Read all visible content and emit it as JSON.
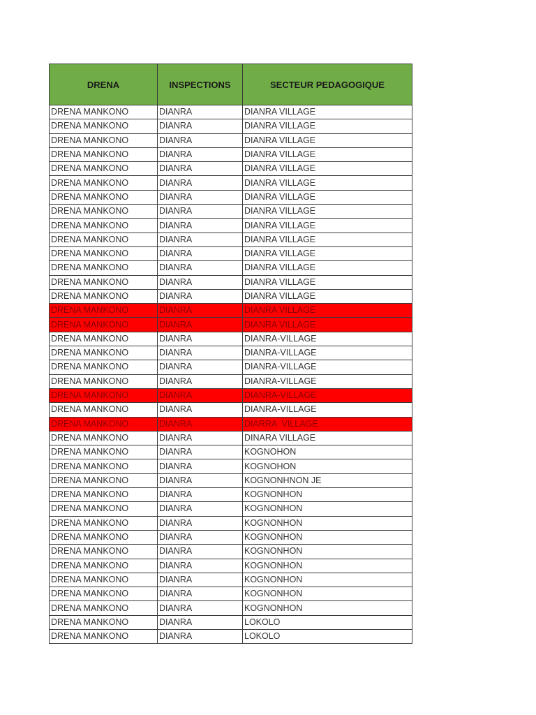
{
  "colors": {
    "header_fill": "#70ad47",
    "highlight_fill": "#ff0000"
  },
  "table": {
    "headers": [
      "DRENA",
      "INSPECTIONS",
      "SECTEUR PEDAGOGIQUE"
    ],
    "rows": [
      {
        "cells": [
          "DRENA MANKONO",
          "DIANRA",
          "DIANRA VILLAGE"
        ],
        "highlighted": false
      },
      {
        "cells": [
          "DRENA MANKONO",
          "DIANRA",
          "DIANRA VILLAGE"
        ],
        "highlighted": false
      },
      {
        "cells": [
          "DRENA MANKONO",
          "DIANRA",
          "DIANRA VILLAGE"
        ],
        "highlighted": false
      },
      {
        "cells": [
          "DRENA MANKONO",
          "DIANRA",
          "DIANRA VILLAGE"
        ],
        "highlighted": false
      },
      {
        "cells": [
          "DRENA MANKONO",
          "DIANRA",
          "DIANRA VILLAGE"
        ],
        "highlighted": false
      },
      {
        "cells": [
          "DRENA MANKONO",
          "DIANRA",
          "DIANRA VILLAGE"
        ],
        "highlighted": false
      },
      {
        "cells": [
          "DRENA MANKONO",
          "DIANRA",
          "DIANRA VILLAGE"
        ],
        "highlighted": false
      },
      {
        "cells": [
          "DRENA MANKONO",
          "DIANRA",
          "DIANRA VILLAGE"
        ],
        "highlighted": false
      },
      {
        "cells": [
          "DRENA MANKONO",
          "DIANRA",
          "DIANRA VILLAGE"
        ],
        "highlighted": false
      },
      {
        "cells": [
          "DRENA MANKONO",
          "DIANRA",
          "DIANRA VILLAGE"
        ],
        "highlighted": false
      },
      {
        "cells": [
          "DRENA MANKONO",
          "DIANRA",
          "DIANRA VILLAGE"
        ],
        "highlighted": false
      },
      {
        "cells": [
          "DRENA MANKONO",
          "DIANRA",
          "DIANRA VILLAGE"
        ],
        "highlighted": false
      },
      {
        "cells": [
          "DRENA MANKONO",
          "DIANRA",
          "DIANRA VILLAGE"
        ],
        "highlighted": false
      },
      {
        "cells": [
          "DRENA MANKONO",
          "DIANRA",
          "DIANRA VILLAGE"
        ],
        "highlighted": false
      },
      {
        "cells": [
          "DRENA MANKONO",
          "DIANRA",
          "DIANRA VILLAGE"
        ],
        "highlighted": true
      },
      {
        "cells": [
          "DRENA MANKONO",
          "DIANRA",
          "DIANRA VILLAGE"
        ],
        "highlighted": true
      },
      {
        "cells": [
          "DRENA MANKONO",
          "DIANRA",
          "DIANRA-VILLAGE"
        ],
        "highlighted": false
      },
      {
        "cells": [
          "DRENA MANKONO",
          "DIANRA",
          "DIANRA-VILLAGE"
        ],
        "highlighted": false
      },
      {
        "cells": [
          "DRENA MANKONO",
          "DIANRA",
          "DIANRA-VILLAGE"
        ],
        "highlighted": false
      },
      {
        "cells": [
          "DRENA MANKONO",
          "DIANRA",
          "DIANRA-VILLAGE"
        ],
        "highlighted": false
      },
      {
        "cells": [
          "DRENA MANKONO",
          "DIANRA",
          "DIANRA-VILLAGE"
        ],
        "highlighted": true
      },
      {
        "cells": [
          "DRENA MANKONO",
          "DIANRA",
          "DIANRA-VILLAGE"
        ],
        "highlighted": false
      },
      {
        "cells": [
          "DRENA MANKONO",
          "DIANRA",
          "DIARRA  VILLAGE"
        ],
        "highlighted": true
      },
      {
        "cells": [
          "DRENA MANKONO",
          "DIANRA",
          "DINARA VILLAGE"
        ],
        "highlighted": false
      },
      {
        "cells": [
          "DRENA MANKONO",
          "DIANRA",
          "KOGNOHON"
        ],
        "highlighted": false
      },
      {
        "cells": [
          "DRENA MANKONO",
          "DIANRA",
          "KOGNOHON"
        ],
        "highlighted": false
      },
      {
        "cells": [
          "DRENA MANKONO",
          "DIANRA",
          "KOGNONHNON JE"
        ],
        "highlighted": false
      },
      {
        "cells": [
          "DRENA MANKONO",
          "DIANRA",
          "KOGNONHON"
        ],
        "highlighted": false
      },
      {
        "cells": [
          "DRENA MANKONO",
          "DIANRA",
          "KOGNONHON"
        ],
        "highlighted": false
      },
      {
        "cells": [
          "DRENA MANKONO",
          "DIANRA",
          "KOGNONHON"
        ],
        "highlighted": false
      },
      {
        "cells": [
          "DRENA MANKONO",
          "DIANRA",
          "KOGNONHON"
        ],
        "highlighted": false
      },
      {
        "cells": [
          "DRENA MANKONO",
          "DIANRA",
          "KOGNONHON"
        ],
        "highlighted": false
      },
      {
        "cells": [
          "DRENA MANKONO",
          "DIANRA",
          "KOGNONHON"
        ],
        "highlighted": false
      },
      {
        "cells": [
          "DRENA MANKONO",
          "DIANRA",
          "KOGNONHON"
        ],
        "highlighted": false
      },
      {
        "cells": [
          "DRENA MANKONO",
          "DIANRA",
          "KOGNONHON"
        ],
        "highlighted": false
      },
      {
        "cells": [
          "DRENA MANKONO",
          "DIANRA",
          "KOGNONHON"
        ],
        "highlighted": false
      },
      {
        "cells": [
          "DRENA MANKONO",
          "DIANRA",
          "LOKOLO"
        ],
        "highlighted": false
      },
      {
        "cells": [
          "DRENA MANKONO",
          "DIANRA",
          "LOKOLO"
        ],
        "highlighted": false
      }
    ]
  }
}
